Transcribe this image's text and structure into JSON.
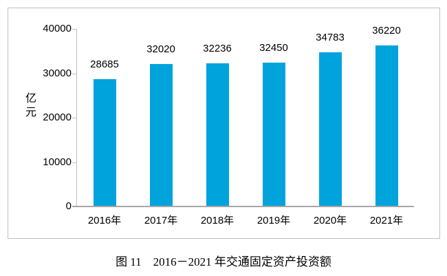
{
  "figure": {
    "caption": "图 11　2016－2021 年交通固定资产投资额"
  },
  "chart_data": {
    "type": "bar",
    "title": "图 11　2016－2021 年交通固定资产投资额",
    "categories": [
      "2016年",
      "2017年",
      "2018年",
      "2019年",
      "2020年",
      "2021年"
    ],
    "values": [
      28685,
      32020,
      32236,
      32450,
      34783,
      36220
    ],
    "value_labels": [
      "28685",
      "32020",
      "32236",
      "32450",
      "34783",
      "36220"
    ],
    "xlabel": "",
    "ylabel": "亿元",
    "yticks": [
      0,
      10000,
      20000,
      30000,
      40000
    ],
    "ytick_labels": [
      "0",
      "10000",
      "20000",
      "30000",
      "40000"
    ],
    "ylim": [
      0,
      40000
    ],
    "grid": false,
    "legend": "none",
    "bar_color": "#00A3DC",
    "axis_color": "#A6A6A6",
    "frame_color": "#BFBFBF",
    "text_color": "#000000"
  }
}
